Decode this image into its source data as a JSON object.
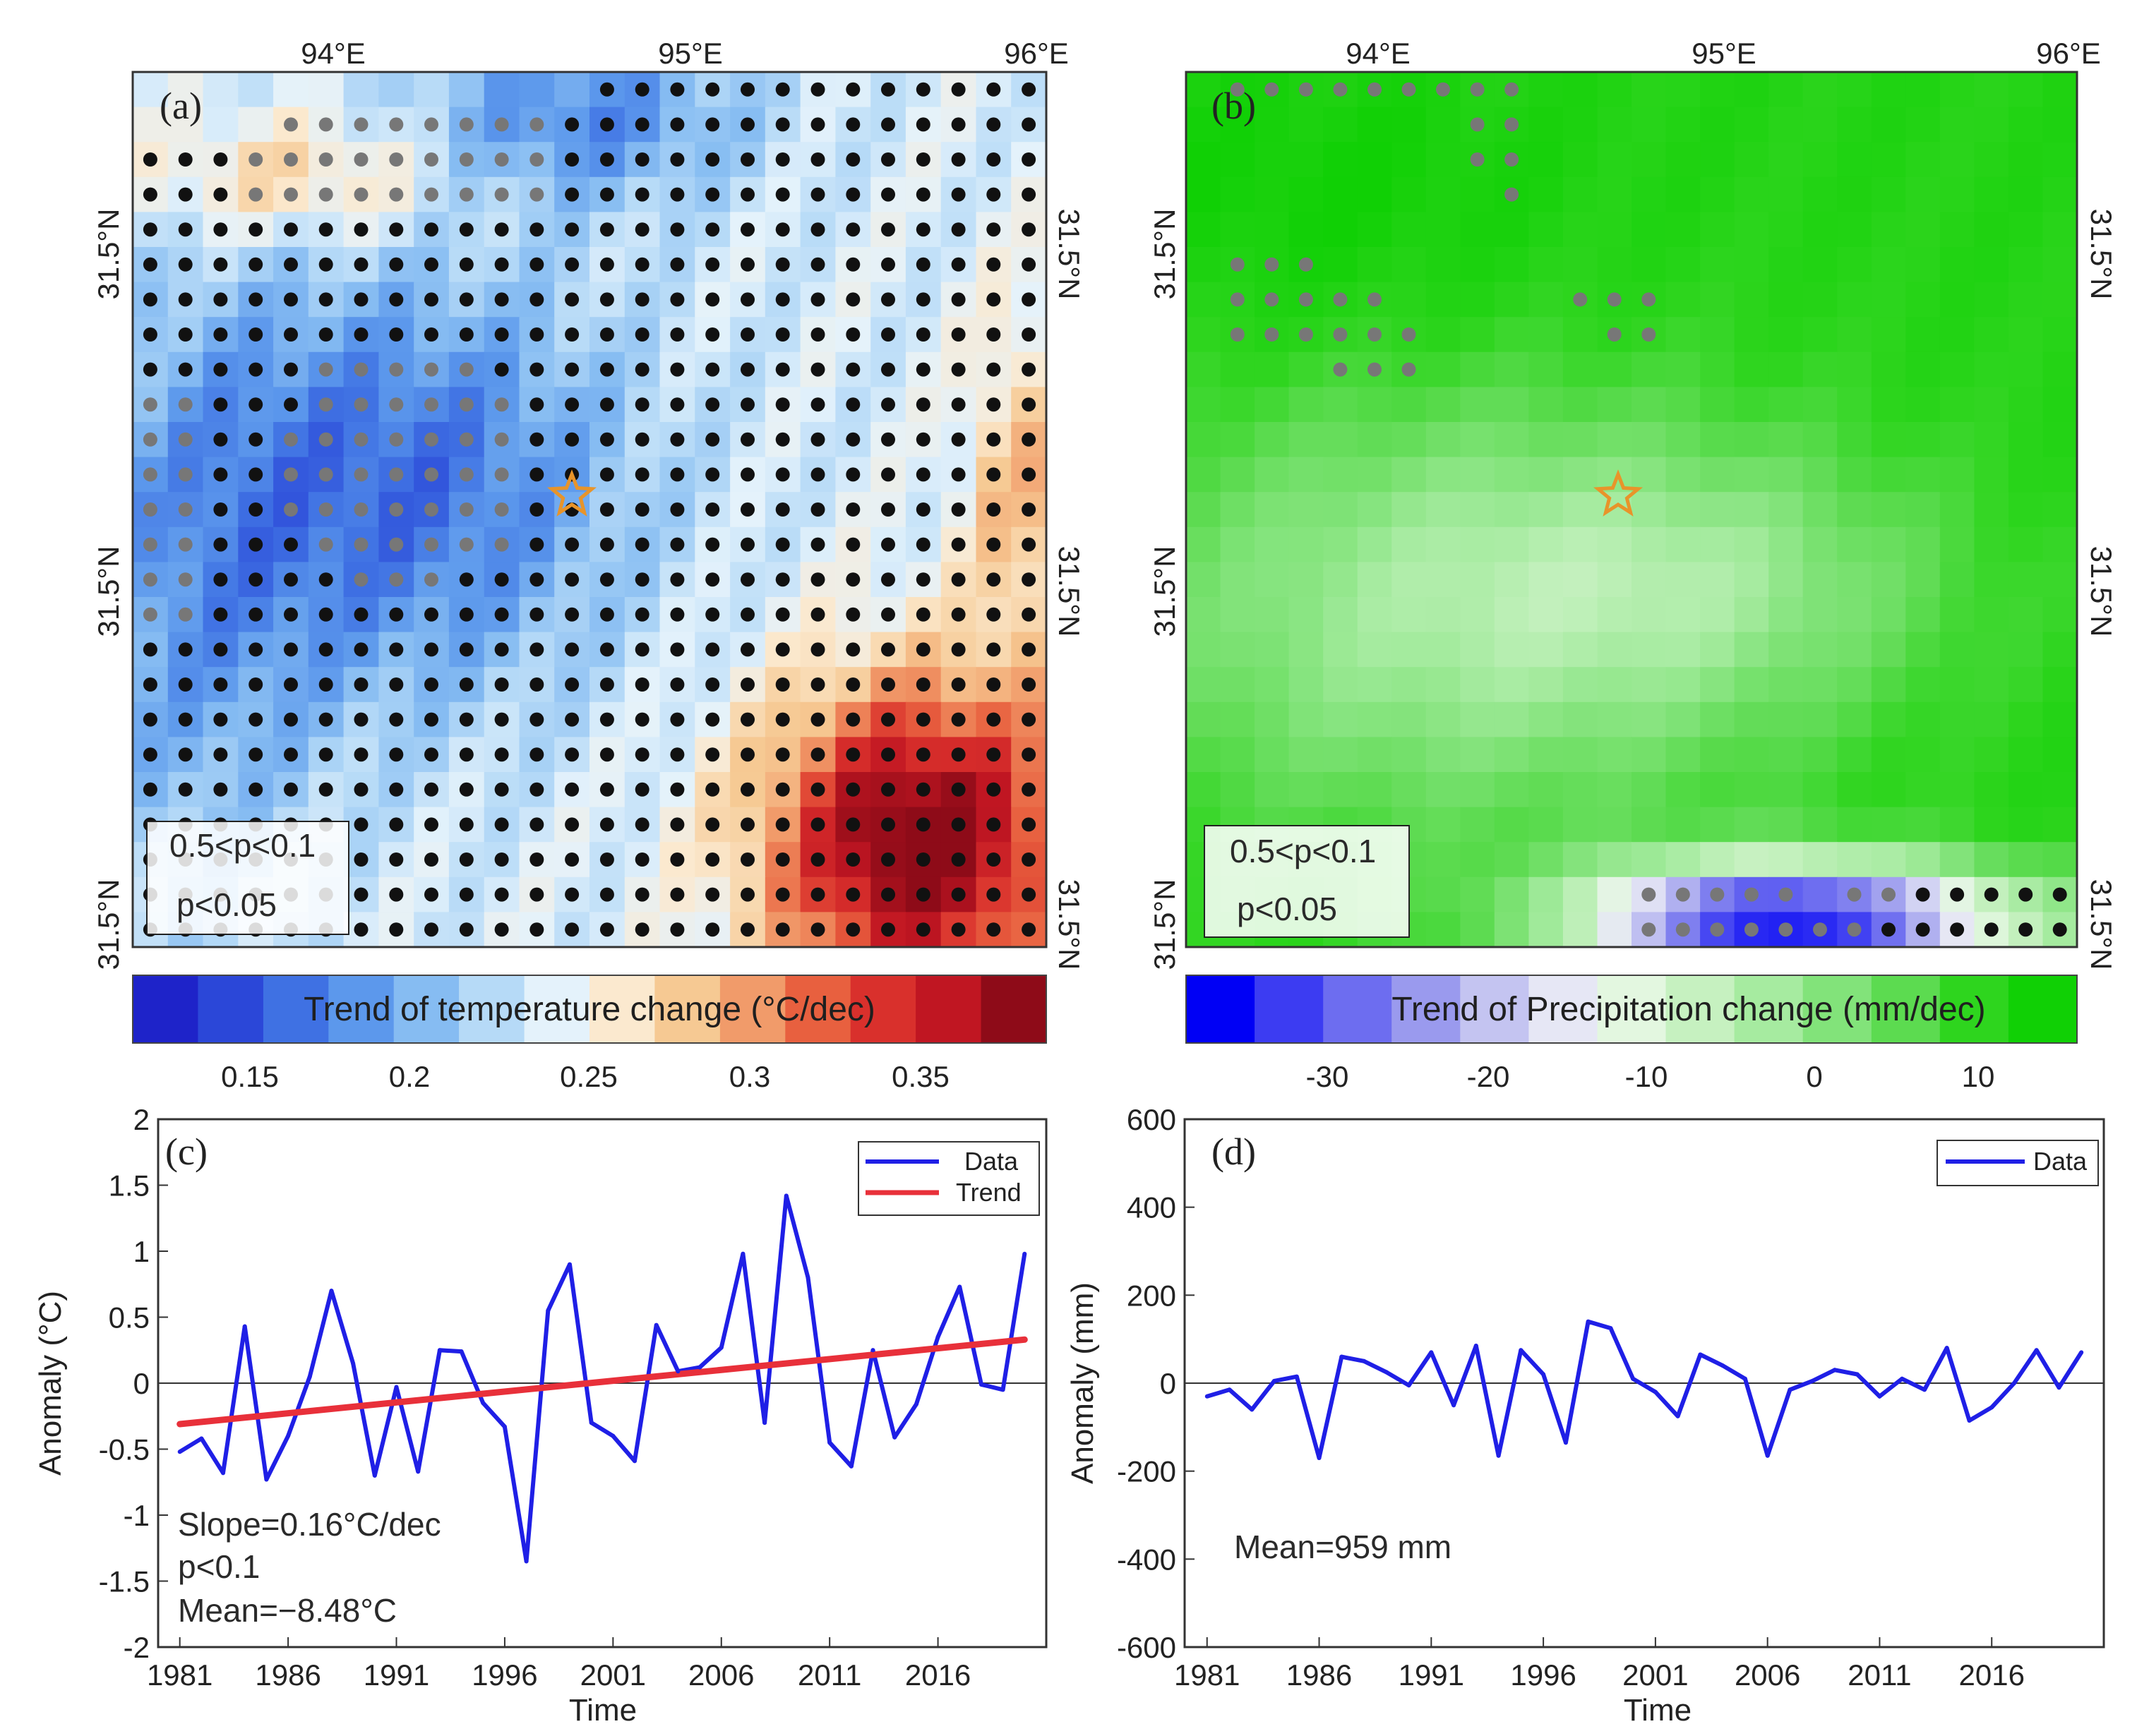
{
  "colors": {
    "data_line": "#1f1fe6",
    "trend_line": "#e8303a",
    "star": "#e8942a",
    "dot_p005": "#111111",
    "dot_p01": "#777777"
  },
  "panels": {
    "a": {
      "tag": "(a)",
      "x_ticks": [
        "94°E",
        "95°E",
        "96°E"
      ],
      "y_ticks": [
        "31.5°N",
        "31.5°N",
        "31.5°N"
      ],
      "legend": [
        "0.5<p<0.1",
        "p<0.05"
      ],
      "colorbar": {
        "title": "Trend of temperature change (°C/dec)",
        "ticks": [
          "0.15",
          "0.2",
          "0.25",
          "0.3",
          "0.35"
        ],
        "range": [
          0.12,
          0.38
        ],
        "colors": [
          "#1e23c9",
          "#2b47d8",
          "#3f71e3",
          "#5c98ec",
          "#86bcf2",
          "#b6daf7",
          "#e4f2fb",
          "#fbe9cf",
          "#f6c993",
          "#f19b6a",
          "#e8603f",
          "#d9302c",
          "#c01622",
          "#8e0b18"
        ]
      }
    },
    "b": {
      "tag": "(b)",
      "x_ticks": [
        "94°E",
        "95°E",
        "96°E"
      ],
      "y_ticks": [
        "31.5°N",
        "31.5°N",
        "31.5°N"
      ],
      "legend": [
        "0.5<p<0.1",
        "p<0.05"
      ],
      "colorbar": {
        "title": "Trend of Precipitation change (mm/dec)",
        "ticks": [
          "-30",
          "-20",
          "-10",
          "0",
          "10"
        ],
        "range": [
          -38,
          16
        ],
        "colors": [
          "#0000f5",
          "#3c3cf2",
          "#6d6df0",
          "#9a9aee",
          "#c4c4f1",
          "#e6e7f5",
          "#e3f7e0",
          "#c6f1c0",
          "#a6eba0",
          "#82e37a",
          "#5cdb50",
          "#2ed51e",
          "#10d005"
        ]
      }
    }
  },
  "chart_data": [
    {
      "panel": "(c)",
      "type": "line",
      "xlabel": "Time",
      "ylabel": "Anomaly (°C)",
      "x_ticks": [
        "1981",
        "1986",
        "1991",
        "1996",
        "2001",
        "2006",
        "2011",
        "2016"
      ],
      "y_ticks": [
        "-2",
        "-1.5",
        "-1",
        "-0.5",
        "0",
        "0.5",
        "1",
        "1.5",
        "2"
      ],
      "xlim": [
        1980,
        2021
      ],
      "ylim": [
        -2,
        2
      ],
      "legend": [
        "Data",
        "Trend"
      ],
      "series": [
        {
          "name": "Data",
          "x": [
            1981,
            1982,
            1983,
            1984,
            1985,
            1986,
            1987,
            1988,
            1989,
            1990,
            1991,
            1992,
            1993,
            1994,
            1995,
            1996,
            1997,
            1998,
            1999,
            2000,
            2001,
            2002,
            2003,
            2004,
            2005,
            2006,
            2007,
            2008,
            2009,
            2010,
            2011,
            2012,
            2013,
            2014,
            2015,
            2016,
            2017,
            2018,
            2019,
            2020
          ],
          "values": [
            -0.52,
            -0.42,
            -0.68,
            0.43,
            -0.73,
            -0.4,
            0.05,
            0.7,
            0.15,
            -0.7,
            -0.03,
            -0.67,
            0.25,
            0.24,
            -0.15,
            -0.33,
            -1.35,
            0.55,
            0.9,
            -0.3,
            -0.4,
            -0.59,
            0.44,
            0.09,
            0.12,
            0.27,
            0.98,
            -0.3,
            1.42,
            0.8,
            -0.45,
            -0.63,
            0.25,
            -0.41,
            -0.16,
            0.35,
            0.73,
            -0.01,
            -0.05,
            0.98
          ]
        },
        {
          "name": "Trend",
          "x": [
            1981,
            2020
          ],
          "values": [
            -0.31,
            0.33
          ]
        }
      ],
      "annotations": [
        "Slope=0.16°C/dec",
        "p<0.1",
        "Mean=−8.48°C"
      ]
    },
    {
      "panel": "(d)",
      "type": "line",
      "xlabel": "Time",
      "ylabel": "Anomaly (mm)",
      "x_ticks": [
        "1981",
        "1986",
        "1991",
        "1996",
        "2001",
        "2006",
        "2011",
        "2016"
      ],
      "y_ticks": [
        "-600",
        "-400",
        "-200",
        "0",
        "200",
        "400",
        "600"
      ],
      "xlim": [
        1980,
        2021
      ],
      "ylim": [
        -600,
        600
      ],
      "legend": [
        "Data"
      ],
      "series": [
        {
          "name": "Data",
          "x": [
            1981,
            1982,
            1983,
            1984,
            1985,
            1986,
            1987,
            1988,
            1989,
            1990,
            1991,
            1992,
            1993,
            1994,
            1995,
            1996,
            1997,
            1998,
            1999,
            2000,
            2001,
            2002,
            2003,
            2004,
            2005,
            2006,
            2007,
            2008,
            2009,
            2010,
            2011,
            2012,
            2013,
            2014,
            2015,
            2016,
            2017,
            2018,
            2019,
            2020
          ],
          "values": [
            -30,
            -15,
            -60,
            5,
            15,
            -170,
            60,
            50,
            25,
            -5,
            70,
            -50,
            85,
            -165,
            75,
            20,
            -135,
            140,
            125,
            10,
            -20,
            -75,
            65,
            40,
            10,
            -165,
            -15,
            5,
            30,
            20,
            -30,
            10,
            -15,
            80,
            -85,
            -55,
            0,
            75,
            -10,
            70
          ]
        }
      ],
      "annotations": [
        "Mean=959 mm"
      ]
    }
  ]
}
